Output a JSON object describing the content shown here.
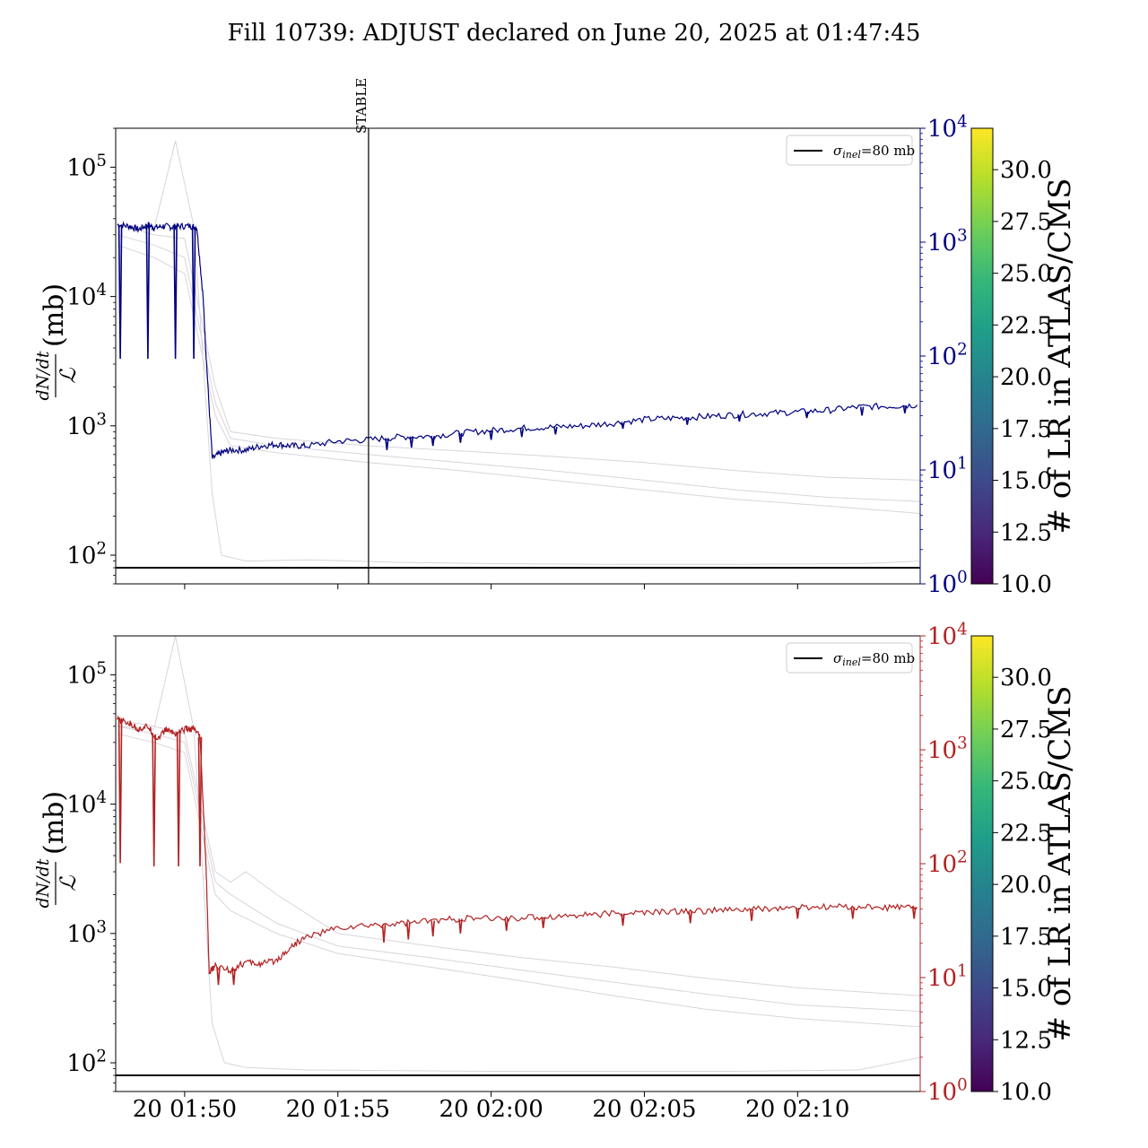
{
  "title": "Fill 10739: ADJUST declared on June 20, 2025 at 01:47:45",
  "colors": {
    "top_series": "#000080",
    "bottom_series": "#b22222",
    "ref_line": "#000000",
    "faint_lines": "#d8d4dc",
    "viridis": [
      "#440154",
      "#482878",
      "#3e4989",
      "#31688e",
      "#26828e",
      "#1f9e89",
      "#35b779",
      "#6ece58",
      "#b5de2b",
      "#fde725"
    ]
  },
  "annotation": {
    "label": "STABLE",
    "x_minutes": 6.0
  },
  "colorbar": {
    "label": "# of LR in ATLAS/CMS",
    "range": [
      10.0,
      32.0
    ],
    "ticks": [
      "10.0",
      "12.5",
      "15.0",
      "17.5",
      "20.0",
      "22.5",
      "25.0",
      "27.5",
      "30.0"
    ]
  },
  "chart_data": [
    {
      "type": "line",
      "panel": "top",
      "ylabel_num": "dN/dt",
      "ylabel_den": "ℒ",
      "ylabel_unit": "(mb)",
      "yscale": "log",
      "ylim": [
        60,
        200000
      ],
      "yticks": [
        {
          "value": 100,
          "base": "10",
          "exp": "2"
        },
        {
          "value": 1000,
          "base": "10",
          "exp": "3"
        },
        {
          "value": 10000,
          "base": "10",
          "exp": "4"
        },
        {
          "value": 100000,
          "base": "10",
          "exp": "5"
        }
      ],
      "y2scale": "log",
      "y2lim": [
        1,
        10000
      ],
      "y2ticks": [
        {
          "value": 1,
          "base": "10",
          "exp": "0"
        },
        {
          "value": 10,
          "base": "10",
          "exp": "1"
        },
        {
          "value": 100,
          "base": "10",
          "exp": "2"
        },
        {
          "value": 1000,
          "base": "10",
          "exp": "3"
        },
        {
          "value": 10000,
          "base": "10",
          "exp": "4"
        }
      ],
      "xlim_minutes": [
        -2.25,
        24.0
      ],
      "x_unit": "minutes after 20 01:50",
      "legend": {
        "label_sigma": "σ",
        "label_sub": "inel",
        "label_rest": "=80 mb",
        "placement": "upper right"
      },
      "reference_line": {
        "y": 80
      },
      "series": [
        {
          "x": [
            -2.2,
            -1.8,
            -1.5,
            -1.2,
            -1.0,
            -0.7,
            -0.4,
            -0.2,
            0.2,
            0.4,
            0.6,
            0.7,
            0.9,
            1.2,
            1.5,
            2.0,
            2.5,
            3.0,
            3.5,
            4.0,
            5.0,
            6.0,
            7.0,
            8.0,
            9.0,
            10.0,
            11.0,
            12.0,
            13.0,
            14.0,
            15.0,
            16.0,
            17.0,
            18.0,
            19.0,
            20.0,
            21.0,
            22.0,
            23.0,
            23.9
          ],
          "y": [
            36000,
            35000,
            33000,
            36000,
            34000,
            35000,
            34500,
            35000,
            35000,
            34000,
            10000,
            3500,
            560,
            620,
            650,
            650,
            700,
            720,
            700,
            700,
            760,
            780,
            820,
            830,
            880,
            920,
            960,
            980,
            1000,
            1050,
            1120,
            1150,
            1180,
            1220,
            1250,
            1280,
            1320,
            1400,
            1420,
            1450
          ]
        }
      ],
      "dips": {
        "x": [
          -2.1,
          -1.2,
          -0.3,
          0.3,
          6.6,
          7.4,
          8.1,
          9.0,
          10.0,
          11.0,
          12.1,
          14.3,
          16.4,
          18.1,
          20.3,
          22.1,
          23.5
        ],
        "y": [
          3300,
          3300,
          3300,
          3300,
          650,
          680,
          700,
          740,
          780,
          820,
          860,
          950,
          1020,
          1080,
          1150,
          1200,
          1250
        ]
      },
      "faint_series": [
        {
          "x": [
            -2.2,
            -1,
            0,
            1,
            1.5,
            3,
            6,
            9,
            12,
            15,
            18,
            21,
            24
          ],
          "y": [
            36000,
            30000,
            28000,
            2000,
            900,
            800,
            700,
            640,
            580,
            520,
            450,
            400,
            380
          ]
        },
        {
          "x": [
            -2.2,
            -1,
            0,
            1,
            1.5,
            3,
            6,
            9,
            12,
            15,
            18,
            21,
            24
          ],
          "y": [
            30000,
            25000,
            20000,
            1500,
            800,
            700,
            600,
            520,
            450,
            380,
            320,
            280,
            260
          ]
        },
        {
          "x": [
            -2.2,
            -1,
            0,
            1,
            1.5,
            3,
            6,
            9,
            12,
            15,
            18,
            21,
            24
          ],
          "y": [
            25000,
            20000,
            15000,
            1200,
            700,
            620,
            520,
            450,
            380,
            320,
            270,
            240,
            210
          ]
        },
        {
          "x": [
            -2.2,
            -1,
            -0.3,
            0.3,
            0.9,
            1.2,
            2,
            4,
            7,
            10,
            14,
            18,
            22,
            24
          ],
          "y": [
            35000,
            33000,
            160000,
            35000,
            300,
            100,
            90,
            92,
            88,
            86,
            85,
            85,
            86,
            90
          ]
        }
      ]
    },
    {
      "type": "line",
      "panel": "bottom",
      "ylabel_num": "dN/dt",
      "ylabel_den": "ℒ",
      "ylabel_unit": "(mb)",
      "yscale": "log",
      "ylim": [
        60,
        200000
      ],
      "yticks": [
        {
          "value": 100,
          "base": "10",
          "exp": "2"
        },
        {
          "value": 1000,
          "base": "10",
          "exp": "3"
        },
        {
          "value": 10000,
          "base": "10",
          "exp": "4"
        },
        {
          "value": 100000,
          "base": "10",
          "exp": "5"
        }
      ],
      "y2scale": "log",
      "y2lim": [
        1,
        10000
      ],
      "y2ticks": [
        {
          "value": 1,
          "base": "10",
          "exp": "0"
        },
        {
          "value": 10,
          "base": "10",
          "exp": "1"
        },
        {
          "value": 100,
          "base": "10",
          "exp": "2"
        },
        {
          "value": 1000,
          "base": "10",
          "exp": "3"
        },
        {
          "value": 10000,
          "base": "10",
          "exp": "4"
        }
      ],
      "xlim_minutes": [
        -2.25,
        24.0
      ],
      "x_unit": "minutes after 20 01:50",
      "xticks": [
        {
          "minutes": 0,
          "label": "20 01:50"
        },
        {
          "minutes": 5,
          "label": "20 01:55"
        },
        {
          "minutes": 10,
          "label": "20 02:00"
        },
        {
          "minutes": 15,
          "label": "20 02:05"
        },
        {
          "minutes": 20,
          "label": "20 02:10"
        }
      ],
      "legend": {
        "label_sigma": "σ",
        "label_sub": "inel",
        "label_rest": "=80 mb",
        "placement": "upper right"
      },
      "reference_line": {
        "y": 80
      },
      "series": [
        {
          "x": [
            -2.2,
            -1.8,
            -1.5,
            -1.2,
            -0.9,
            -0.6,
            -0.3,
            0.0,
            0.3,
            0.5,
            0.7,
            0.8,
            1.0,
            1.5,
            2.0,
            2.5,
            3.0,
            3.5,
            4.0,
            5.0,
            6.0,
            7.0,
            8.0,
            9.0,
            10.0,
            11.0,
            12.0,
            13.0,
            14.0,
            15.0,
            16.0,
            17.0,
            18.0,
            19.0,
            20.0,
            21.0,
            22.0,
            23.0,
            23.9
          ],
          "y": [
            45000,
            42000,
            38000,
            40000,
            32000,
            38000,
            35000,
            38000,
            38000,
            33000,
            3200,
            500,
            560,
            520,
            600,
            580,
            620,
            800,
            950,
            1100,
            1150,
            1200,
            1250,
            1300,
            1300,
            1320,
            1350,
            1400,
            1420,
            1450,
            1480,
            1500,
            1520,
            1550,
            1580,
            1600,
            1600,
            1580,
            1600
          ]
        }
      ],
      "dips": {
        "x": [
          -2.1,
          -1.0,
          -0.2,
          0.5,
          1.1,
          1.6,
          6.5,
          7.3,
          8.1,
          9.0,
          10.5,
          11.7,
          14.3,
          16.5,
          18.5,
          20.0,
          21.8,
          23.8
        ],
        "y": [
          3500,
          3300,
          3300,
          3300,
          400,
          400,
          850,
          900,
          950,
          1000,
          1050,
          1100,
          1150,
          1200,
          1250,
          1300,
          1300,
          1300
        ]
      },
      "faint_series": [
        {
          "x": [
            -2.2,
            -1,
            0,
            1,
            1.5,
            2,
            3,
            5,
            8,
            11,
            14,
            17,
            20,
            24
          ],
          "y": [
            45000,
            40000,
            35000,
            3000,
            2500,
            3000,
            2000,
            1000,
            800,
            650,
            550,
            450,
            380,
            330
          ]
        },
        {
          "x": [
            -2.2,
            -1,
            0,
            1,
            1.5,
            3,
            5,
            8,
            11,
            14,
            17,
            20,
            24
          ],
          "y": [
            40000,
            35000,
            30000,
            2500,
            2000,
            1200,
            800,
            650,
            520,
            420,
            340,
            280,
            250
          ]
        },
        {
          "x": [
            -2.2,
            -1,
            0,
            1,
            1.5,
            3,
            5,
            8,
            11,
            14,
            17,
            20,
            24
          ],
          "y": [
            35000,
            30000,
            25000,
            2000,
            1500,
            1000,
            700,
            550,
            430,
            330,
            260,
            220,
            190
          ]
        },
        {
          "x": [
            -2.2,
            -1,
            -0.3,
            0.3,
            0.9,
            1.3,
            2,
            4,
            7,
            10,
            14,
            18,
            22,
            24
          ],
          "y": [
            40000,
            38000,
            200000,
            38000,
            200,
            100,
            92,
            88,
            87,
            86,
            86,
            86,
            88,
            110
          ]
        }
      ]
    }
  ]
}
